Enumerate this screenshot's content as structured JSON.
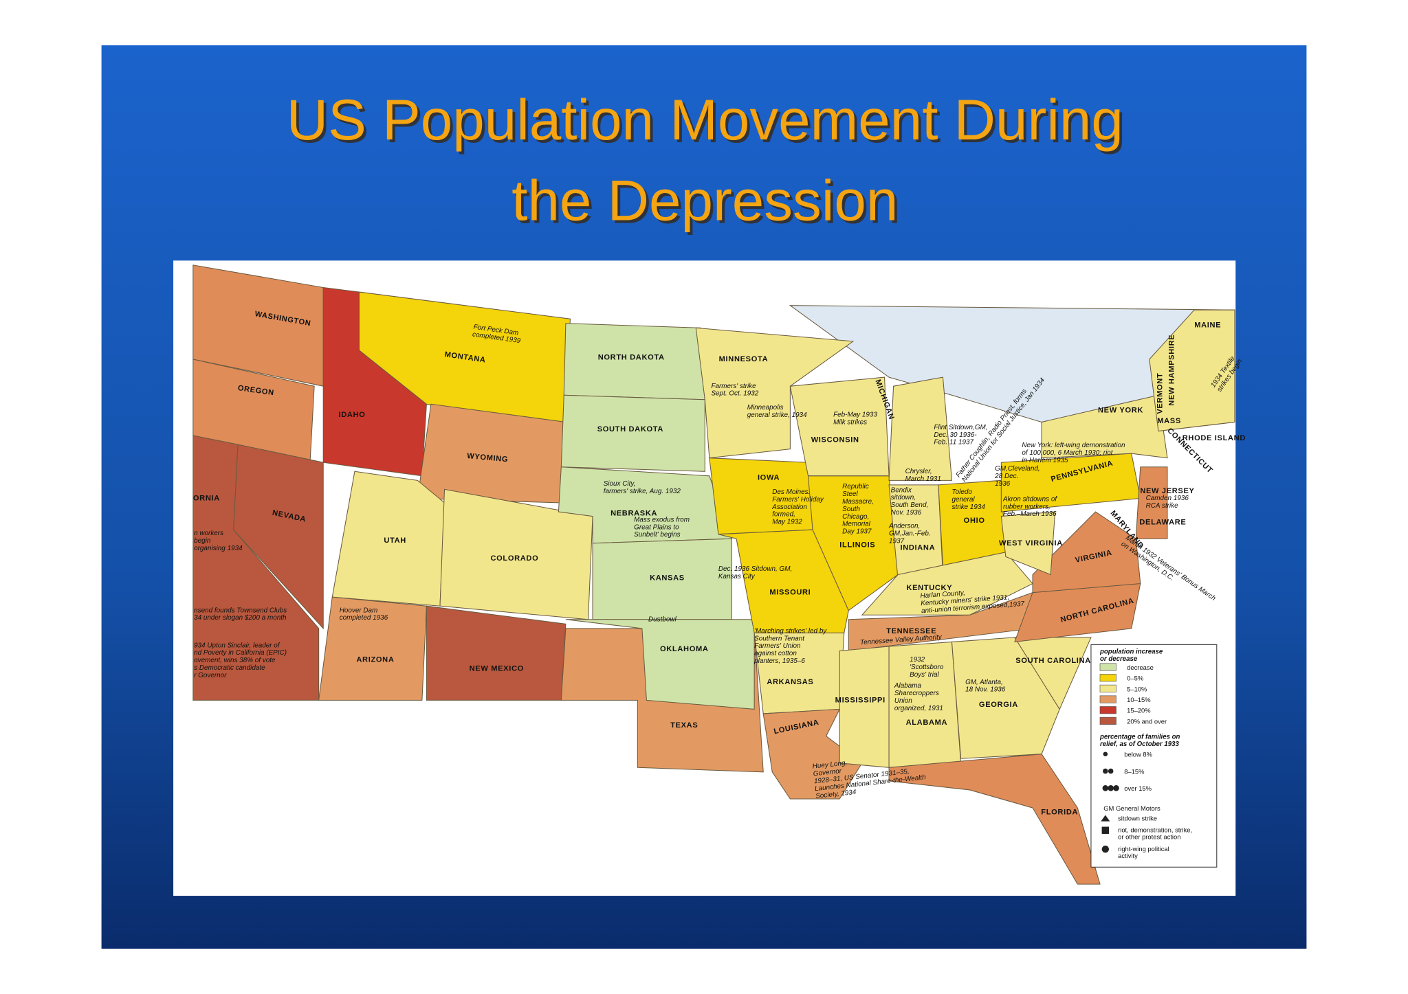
{
  "slide": {
    "title_lines": [
      "US Population Movement During",
      "the Depression"
    ]
  },
  "map": {
    "states": [
      "WASHINGTON",
      "MONTANA",
      "OREGON",
      "IDAHO",
      "NEVADA",
      "UTAH",
      "WYOMING",
      "COLORADO",
      "ARIZONA",
      "NEW MEXICO",
      "TEXAS",
      "NORTH DAKOTA",
      "SOUTH DAKOTA",
      "NEBRASKA",
      "KANSAS",
      "OKLAHOMA",
      "MINNESOTA",
      "IOWA",
      "MISSOURI",
      "ARKANSAS",
      "LOUISIANA",
      "WISCONSIN",
      "ILLINOIS",
      "MICHIGAN",
      "INDIANA",
      "OHIO",
      "KENTUCKY",
      "TENNESSEE",
      "MISSISSIPPI",
      "ALABAMA",
      "GEORGIA",
      "FLORIDA",
      "SOUTH CAROLINA",
      "NORTH CAROLINA",
      "VIRGINIA",
      "WEST VIRGINIA",
      "PENNSYLVANIA",
      "NEW YORK",
      "NEW JERSEY",
      "DELAWARE",
      "MARYLAND",
      "CONNECTICUT",
      "RHODE ISLAND",
      "MASS",
      "VERMONT",
      "NEW HAMPSHIRE",
      "MAINE",
      "ORNIA"
    ],
    "annotations": [
      "Fort Peck Dam\ncompleted 1939",
      "Farmers' strike\nSept. Oct. 1932",
      "Minneapolis\ngeneral strike, 1934",
      "Feb-May 1933\nMilk strikes",
      "Sioux City,\nfarmers' strike, Aug. 1932",
      "Des Moines.\nFarmers' Holiday\nAssociation\nformed,\nMay 1932",
      "Mass exodus from\nGreat Plains to\nSunbelt' begins",
      "Dec. 1936 Sitdown, GM,\nKansas City",
      "Dustbowl",
      "Republic\nSteel\nMassacre,\nSouth\nChicago,\nMemorial\nDay 1937",
      "Bendix\nsitdown,\nSouth Bend,\nNov. 1936",
      "Chrysler,\nMarch 1931",
      "Flint Sitdown,GM,\nDec. 30 1936-\nFeb. 11 1937",
      "Toledo\ngeneral\nstrike 1934",
      "Anderson,\nGM,Jan.-Feb.\n1937",
      "Akron sitdowns of\nrubber workers,\nFeb.–March 1936",
      "GM,Cleveland,\n28 Dec.\n1936",
      "New York: left-wing demonstration\nof 100,000, 6 March 1930; riot\nin Harlem 1935",
      "Father Coughlin, Radio Priest, forms\nNational Union for Social Justice, Jan 1934",
      "1934 Textile\nstrikes begin",
      "Camden 1936\nRCA strike",
      "March 1932 Veterans' Bonus March\non Washington, D.C.",
      "Harlan County,\nKentucky miners' strike 1931,\nanti-union terrorism exposed,1937",
      "Tennessee Valley Authority",
      "'Marching strikes' led by\nSouthern Tenant\nFarmers' Union\nagainst cotton\nplanters, 1935–6",
      "1932\n'Scottsboro\nBoys' trial",
      "Alabama\nSharecroppers\nUnion\norganized, 1931",
      "GM, Atlanta,\n18 Nov. 1936",
      "Huey Long,\nGovernor\n1928–31, US Senator 1931–35,\nLaunches National Share-the-Wealth\nSociety, 1934",
      "Hoover Dam\ncompleted 1936",
      "n workers\nbegin\norganising 1934",
      "nsend founds Townsend Clubs\n34 under slogan $200 a month",
      "934 Upton Sinclair, leader of\nnd Poverty in California (EPIC)\novement, wins 38% of vote\ns Democratic candidate\nr Governor"
    ],
    "legend": {
      "population_title": "population increase\nor decrease",
      "population_items": [
        "decrease",
        "0–5%",
        "5–10%",
        "10–15%",
        "15–20%",
        "20% and over"
      ],
      "relief_title": "percentage of families on\nrelief, as of October 1933",
      "relief_items": [
        "below 8%",
        "8–15%",
        "over 15%"
      ],
      "gm": "GM General Motors",
      "symbols": [
        "sitdown strike",
        "riot, demonstration, strike,\nor other protest action",
        "right-wing political\nactivity"
      ]
    }
  }
}
